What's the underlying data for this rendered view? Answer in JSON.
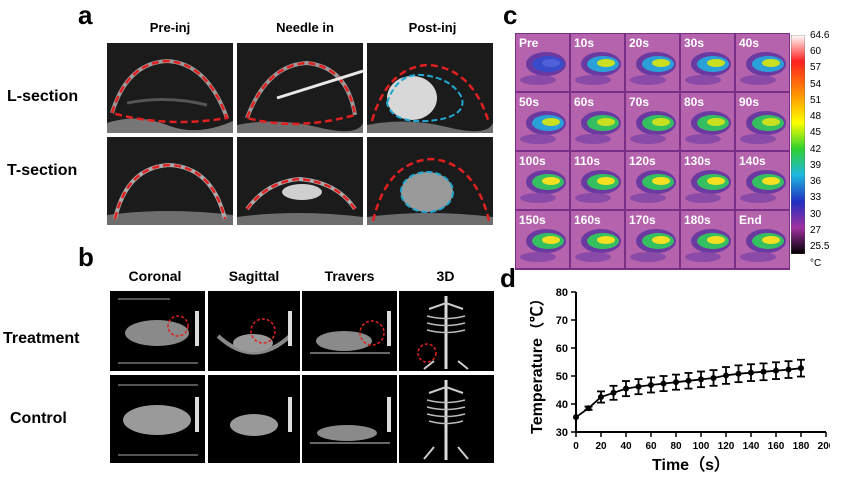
{
  "panel_a": {
    "letter": "a",
    "columns": [
      "Pre-inj",
      "Needle in",
      "Post-inj"
    ],
    "rows": [
      "L-section",
      "T-section"
    ]
  },
  "panel_b": {
    "letter": "b",
    "columns": [
      "Coronal",
      "Sagittal",
      "Travers",
      "3D"
    ],
    "rows": [
      "Treatment",
      "Control"
    ]
  },
  "panel_c": {
    "letter": "c",
    "frames": [
      "Pre",
      "10s",
      "20s",
      "30s",
      "40s",
      "50s",
      "60s",
      "70s",
      "80s",
      "90s",
      "100s",
      "110s",
      "120s",
      "130s",
      "140s",
      "150s",
      "160s",
      "170s",
      "180s",
      "End"
    ],
    "colorbar_ticks": [
      "64.6",
      "60",
      "57",
      "54",
      "51",
      "48",
      "45",
      "42",
      "39",
      "36",
      "33",
      "30",
      "27",
      "25.5"
    ],
    "colorbar_unit": "°C"
  },
  "panel_d": {
    "letter": "d"
  },
  "chart_data": {
    "type": "line",
    "title": "",
    "xlabel": "Time（s）",
    "ylabel": "Temperature（℃）",
    "xlim": [
      0,
      200
    ],
    "ylim": [
      30,
      80
    ],
    "xticks": [
      0,
      20,
      40,
      60,
      80,
      100,
      120,
      140,
      160,
      180,
      200
    ],
    "yticks": [
      30,
      40,
      50,
      60,
      70,
      80
    ],
    "series": [
      {
        "name": "Temperature",
        "x": [
          0,
          10,
          20,
          30,
          40,
          50,
          60,
          70,
          80,
          90,
          100,
          110,
          120,
          130,
          140,
          150,
          160,
          170,
          180
        ],
        "y": [
          35.3,
          38.5,
          42.5,
          44.0,
          45.5,
          46.2,
          46.8,
          47.3,
          47.8,
          48.3,
          48.8,
          49.3,
          50.2,
          50.8,
          51.2,
          51.5,
          51.9,
          52.3,
          52.8
        ],
        "err": [
          0.3,
          0.6,
          2.0,
          2.5,
          2.7,
          2.7,
          2.7,
          2.7,
          2.7,
          2.8,
          2.8,
          2.8,
          3.0,
          3.0,
          3.0,
          3.0,
          3.0,
          3.0,
          3.0
        ]
      }
    ]
  }
}
